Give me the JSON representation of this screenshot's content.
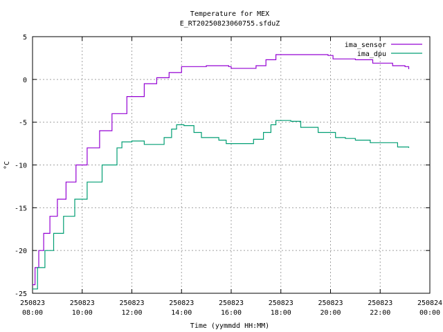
{
  "chart_data": {
    "type": "line",
    "title": "Temperature for MEX",
    "subtitle": "E_RT20250823060755.sfduZ",
    "xlabel": "Time (yymmdd HH:MM)",
    "ylabel": "°C",
    "xlim": [
      8,
      24
    ],
    "ylim": [
      -25,
      5
    ],
    "grid": true,
    "legend_position": "top-right",
    "x_ticks": [
      {
        "value": 8,
        "date": "250823",
        "time": "08:00"
      },
      {
        "value": 10,
        "date": "250823",
        "time": "10:00"
      },
      {
        "value": 12,
        "date": "250823",
        "time": "12:00"
      },
      {
        "value": 14,
        "date": "250823",
        "time": "14:00"
      },
      {
        "value": 16,
        "date": "250823",
        "time": "16:00"
      },
      {
        "value": 18,
        "date": "250823",
        "time": "18:00"
      },
      {
        "value": 20,
        "date": "250823",
        "time": "20:00"
      },
      {
        "value": 22,
        "date": "250823",
        "time": "22:00"
      },
      {
        "value": 24,
        "date": "250824",
        "time": "00:00"
      }
    ],
    "y_ticks": [
      {
        "value": 5,
        "label": "5"
      },
      {
        "value": 0,
        "label": "0"
      },
      {
        "value": -5,
        "label": "-5"
      },
      {
        "value": -10,
        "label": "-10"
      },
      {
        "value": -15,
        "label": "-15"
      },
      {
        "value": -20,
        "label": "-20"
      },
      {
        "value": -25,
        "label": "-25"
      }
    ],
    "series": [
      {
        "name": "ima_sensor",
        "color": "#9400d3",
        "points": [
          [
            8.0,
            -24.0
          ],
          [
            8.1,
            -22.0
          ],
          [
            8.25,
            -20.0
          ],
          [
            8.45,
            -18.0
          ],
          [
            8.7,
            -16.0
          ],
          [
            9.0,
            -14.0
          ],
          [
            9.35,
            -12.0
          ],
          [
            9.75,
            -10.0
          ],
          [
            10.2,
            -8.0
          ],
          [
            10.7,
            -6.0
          ],
          [
            11.2,
            -4.0
          ],
          [
            11.8,
            -2.0
          ],
          [
            12.5,
            -0.5
          ],
          [
            13.0,
            0.2
          ],
          [
            13.5,
            0.8
          ],
          [
            14.0,
            1.5
          ],
          [
            15.0,
            1.6
          ],
          [
            15.9,
            1.5
          ],
          [
            16.0,
            1.3
          ],
          [
            16.8,
            1.3
          ],
          [
            17.0,
            1.6
          ],
          [
            17.4,
            2.3
          ],
          [
            17.8,
            2.9
          ],
          [
            19.9,
            2.8
          ],
          [
            20.1,
            2.4
          ],
          [
            21.0,
            2.3
          ],
          [
            21.7,
            1.9
          ],
          [
            22.5,
            1.6
          ],
          [
            23.0,
            1.5
          ],
          [
            23.15,
            1.2
          ]
        ]
      },
      {
        "name": "ima_dpu",
        "color": "#009e73",
        "points": [
          [
            8.0,
            -24.5
          ],
          [
            8.2,
            -22.0
          ],
          [
            8.5,
            -20.0
          ],
          [
            8.85,
            -18.0
          ],
          [
            9.25,
            -16.0
          ],
          [
            9.7,
            -14.0
          ],
          [
            10.2,
            -12.0
          ],
          [
            10.8,
            -10.0
          ],
          [
            11.4,
            -8.0
          ],
          [
            11.6,
            -7.3
          ],
          [
            12.0,
            -7.2
          ],
          [
            12.4,
            -7.2
          ],
          [
            12.5,
            -7.6
          ],
          [
            13.0,
            -7.6
          ],
          [
            13.3,
            -6.8
          ],
          [
            13.6,
            -5.8
          ],
          [
            13.8,
            -5.3
          ],
          [
            14.1,
            -5.4
          ],
          [
            14.5,
            -6.2
          ],
          [
            14.8,
            -6.8
          ],
          [
            15.5,
            -7.1
          ],
          [
            15.8,
            -7.5
          ],
          [
            16.5,
            -7.5
          ],
          [
            16.9,
            -7.0
          ],
          [
            17.3,
            -6.2
          ],
          [
            17.6,
            -5.3
          ],
          [
            17.8,
            -4.8
          ],
          [
            18.4,
            -4.9
          ],
          [
            18.8,
            -5.6
          ],
          [
            19.5,
            -6.2
          ],
          [
            19.9,
            -6.2
          ],
          [
            20.2,
            -6.8
          ],
          [
            20.6,
            -6.9
          ],
          [
            21.0,
            -7.1
          ],
          [
            21.6,
            -7.4
          ],
          [
            22.5,
            -7.4
          ],
          [
            22.7,
            -7.9
          ],
          [
            23.15,
            -8.0
          ]
        ]
      }
    ]
  }
}
